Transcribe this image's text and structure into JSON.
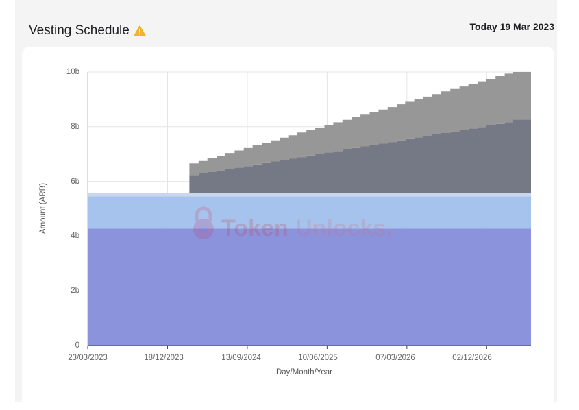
{
  "header": {
    "title": "Vesting Schedule",
    "date_label": "Today 19 Mar 2023"
  },
  "watermark": {
    "brand_bold": "Token",
    "brand_light": "Unlocks."
  },
  "chart_data": {
    "type": "area",
    "title": "",
    "xlabel": "Day/Month/Year",
    "ylabel": "Amount (ARB)",
    "x_tick_labels": [
      "23/03/2023",
      "18/12/2023",
      "13/09/2024",
      "10/06/2025",
      "07/03/2026",
      "02/12/2026"
    ],
    "x_range": [
      "23/03/2023",
      "05/2027"
    ],
    "y_tick_labels": [
      "0",
      "2b",
      "4b",
      "6b",
      "8b",
      "10b"
    ],
    "ylim": [
      0,
      10
    ],
    "y_unit": "billions ARB",
    "grid": true,
    "stacked": true,
    "series": [
      {
        "color": "#8a93dc",
        "step_dates": [
          "23/03/2023"
        ],
        "cumulative_top": [
          4.28
        ]
      },
      {
        "color": "#a6c3ee",
        "step_dates": [
          "23/03/2023"
        ],
        "cumulative_top": [
          5.45
        ]
      },
      {
        "color": "#c9d6ec",
        "step_dates": [
          "23/03/2023"
        ],
        "cumulative_top": [
          5.57
        ]
      },
      {
        "color": "#747985",
        "step_dates": [
          "03/2024",
          "04/2024",
          "05/2024",
          "06/2024",
          "07/2024",
          "08/2024",
          "09/2024",
          "10/2024",
          "11/2024",
          "12/2024",
          "01/2025",
          "02/2025",
          "03/2025",
          "04/2025",
          "05/2025",
          "06/2025",
          "07/2025",
          "08/2025",
          "09/2025",
          "10/2025",
          "11/2025",
          "12/2025",
          "01/2026",
          "02/2026",
          "03/2026",
          "04/2026",
          "05/2026",
          "06/2026",
          "07/2026",
          "08/2026",
          "09/2026",
          "10/2026",
          "11/2026",
          "12/2026",
          "01/2027",
          "02/2027",
          "03/2027"
        ],
        "cumulative_top": [
          6.23,
          6.29,
          6.34,
          6.4,
          6.45,
          6.51,
          6.56,
          6.62,
          6.67,
          6.73,
          6.78,
          6.84,
          6.89,
          6.95,
          7.0,
          7.06,
          7.11,
          7.17,
          7.22,
          7.28,
          7.33,
          7.39,
          7.44,
          7.5,
          7.55,
          7.61,
          7.66,
          7.72,
          7.77,
          7.83,
          7.88,
          7.94,
          7.99,
          8.05,
          8.1,
          8.16,
          8.26
        ]
      },
      {
        "color": "#979797",
        "step_dates": [
          "03/2024",
          "04/2024",
          "05/2024",
          "06/2024",
          "07/2024",
          "08/2024",
          "09/2024",
          "10/2024",
          "11/2024",
          "12/2024",
          "01/2025",
          "02/2025",
          "03/2025",
          "04/2025",
          "05/2025",
          "06/2025",
          "07/2025",
          "08/2025",
          "09/2025",
          "10/2025",
          "11/2025",
          "12/2025",
          "01/2026",
          "02/2026",
          "03/2026",
          "04/2026",
          "05/2026",
          "06/2026",
          "07/2026",
          "08/2026",
          "09/2026",
          "10/2026",
          "11/2026",
          "12/2026",
          "01/2027",
          "02/2027",
          "03/2027"
        ],
        "cumulative_top": [
          6.66,
          6.75,
          6.85,
          6.94,
          7.04,
          7.13,
          7.22,
          7.32,
          7.41,
          7.5,
          7.6,
          7.69,
          7.79,
          7.88,
          7.97,
          8.07,
          8.16,
          8.25,
          8.35,
          8.44,
          8.54,
          8.63,
          8.72,
          8.82,
          8.91,
          9.0,
          9.1,
          9.19,
          9.29,
          9.38,
          9.47,
          9.57,
          9.66,
          9.75,
          9.85,
          9.94,
          10.0
        ]
      }
    ]
  }
}
